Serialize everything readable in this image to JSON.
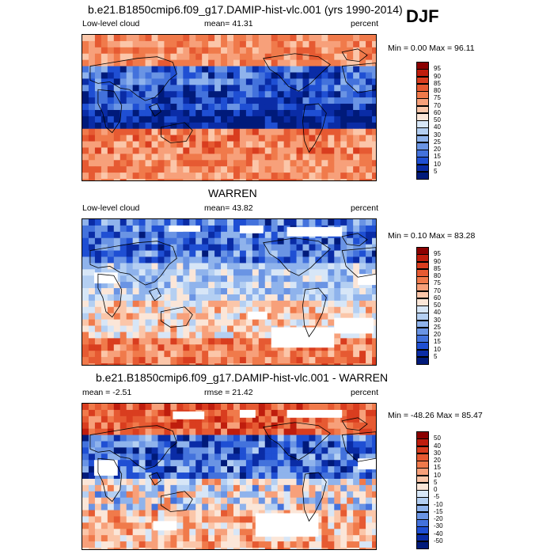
{
  "season": "DJF",
  "panels": [
    {
      "title": "b.e21.B1850cmip6.f09_g17.DAMIP-hist-vlc.001 (yrs 1990-2014)",
      "left_label": "Low-level cloud",
      "center_label": "mean=  41.31",
      "right_label": "percent",
      "minmax": "Min =   0.00 Max =  96.11",
      "levels": [
        "95",
        "90",
        "85",
        "80",
        "75",
        "70",
        "60",
        "50",
        "40",
        "30",
        "25",
        "20",
        "15",
        "10",
        "5"
      ],
      "colors": [
        "#8b0000",
        "#bf1d0d",
        "#d93d1f",
        "#e65a32",
        "#f07a4b",
        "#f7a07a",
        "#fbc6a9",
        "#fbe6d8",
        "#d7e6f7",
        "#b4cff2",
        "#8fb3ec",
        "#6a94e4",
        "#4372dc",
        "#1f4fd3",
        "#0a2ca6",
        "#001a7a"
      ],
      "style": "model"
    },
    {
      "title": "WARREN",
      "left_label": "Low-level cloud",
      "center_label": "mean=  43.82",
      "right_label": "percent",
      "minmax": "Min =   0.10 Max =  83.28",
      "levels": [
        "95",
        "90",
        "85",
        "80",
        "75",
        "70",
        "60",
        "50",
        "40",
        "30",
        "25",
        "20",
        "15",
        "10",
        "5"
      ],
      "colors": [
        "#8b0000",
        "#bf1d0d",
        "#d93d1f",
        "#e65a32",
        "#f07a4b",
        "#f7a07a",
        "#fbc6a9",
        "#fbe6d8",
        "#d7e6f7",
        "#b4cff2",
        "#8fb3ec",
        "#6a94e4",
        "#4372dc",
        "#1f4fd3",
        "#0a2ca6",
        "#001a7a"
      ],
      "style": "obs"
    },
    {
      "title": "b.e21.B1850cmip6.f09_g17.DAMIP-hist-vlc.001 - WARREN",
      "left_label": "mean =  -2.51",
      "center_label": "rmse =  21.42",
      "right_label": "percent",
      "minmax": "Min = -48.26 Max =  85.47",
      "levels": [
        "50",
        "40",
        "30",
        "20",
        "15",
        "10",
        "5",
        "0",
        "-5",
        "-10",
        "-15",
        "-20",
        "-30",
        "-40",
        "-50"
      ],
      "colors": [
        "#8b0000",
        "#bf1d0d",
        "#d93d1f",
        "#e65a32",
        "#f07a4b",
        "#f7a07a",
        "#fbc6a9",
        "#fbe6d8",
        "#d7e6f7",
        "#b4cff2",
        "#8fb3ec",
        "#6a94e4",
        "#4372dc",
        "#1f4fd3",
        "#0a2ca6",
        "#001a7a"
      ],
      "style": "diff"
    }
  ]
}
